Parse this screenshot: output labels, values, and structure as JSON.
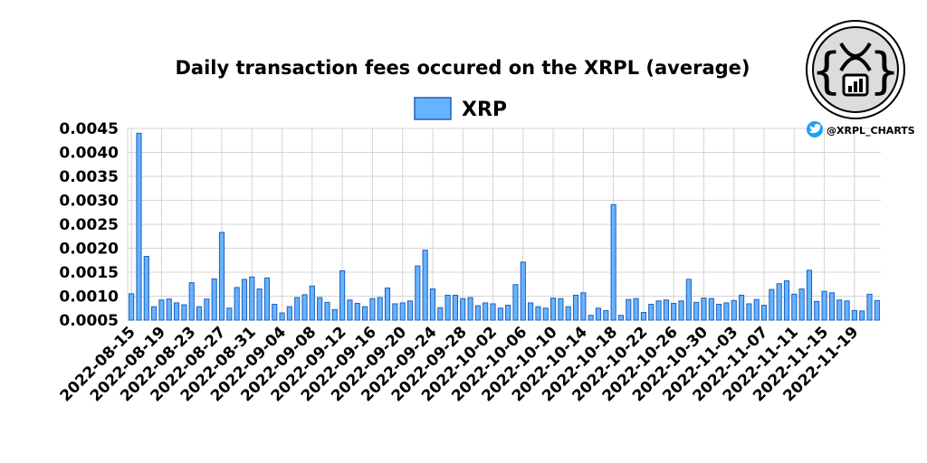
{
  "branding": {
    "handle": "@XRPL_CHARTS",
    "logo_label": "XRPL charts logo"
  },
  "chart_data": {
    "type": "bar",
    "title": "Daily transaction fees occured on the XRPL (average)",
    "xlabel": "",
    "ylabel": "",
    "ylim": [
      0.0005,
      0.0045
    ],
    "yticks": [
      "0.0005",
      "0.0010",
      "0.0015",
      "0.0020",
      "0.0025",
      "0.0030",
      "0.0035",
      "0.0040",
      "0.0045"
    ],
    "xtick_labels": [
      "2022-08-15",
      "2022-08-19",
      "2022-08-23",
      "2022-08-27",
      "2022-08-31",
      "2022-09-04",
      "2022-09-08",
      "2022-09-12",
      "2022-09-16",
      "2022-09-20",
      "2022-09-24",
      "2022-09-28",
      "2022-10-02",
      "2022-10-06",
      "2022-10-10",
      "2022-10-14",
      "2022-10-18",
      "2022-10-22",
      "2022-10-26",
      "2022-10-30",
      "2022-11-03",
      "2022-11-07",
      "2022-11-11",
      "2022-11-15",
      "2022-11-19"
    ],
    "grid": true,
    "legend_position": "top-center",
    "colors": {
      "bar_fill": "#66b3ff",
      "bar_edge": "#1f5fbf"
    },
    "series": [
      {
        "name": "XRP",
        "start_date": "2022-08-15",
        "values": [
          0.00105,
          0.0044,
          0.00183,
          0.00078,
          0.00092,
          0.00094,
          0.00086,
          0.00082,
          0.00128,
          0.00078,
          0.00094,
          0.00136,
          0.00233,
          0.00075,
          0.00118,
          0.00135,
          0.0014,
          0.00115,
          0.00138,
          0.00083,
          0.00065,
          0.00078,
          0.00097,
          0.00103,
          0.00121,
          0.00097,
          0.00087,
          0.00072,
          0.00153,
          0.00092,
          0.00085,
          0.00078,
          0.00095,
          0.00097,
          0.00117,
          0.00084,
          0.00086,
          0.0009,
          0.00163,
          0.00196,
          0.00115,
          0.00076,
          0.00102,
          0.00102,
          0.00095,
          0.00097,
          0.0008,
          0.00086,
          0.00084,
          0.00075,
          0.00081,
          0.00124,
          0.00171,
          0.00086,
          0.00078,
          0.00075,
          0.00096,
          0.00095,
          0.00078,
          0.00102,
          0.00107,
          0.0006,
          0.00075,
          0.0007,
          0.00291,
          0.0006,
          0.00093,
          0.00095,
          0.00066,
          0.00083,
          0.0009,
          0.00092,
          0.00085,
          0.0009,
          0.00135,
          0.00087,
          0.00096,
          0.00095,
          0.00083,
          0.00086,
          0.00091,
          0.00102,
          0.00084,
          0.00093,
          0.00081,
          0.00114,
          0.00126,
          0.00132,
          0.00104,
          0.00115,
          0.00154,
          0.00089,
          0.0011,
          0.00107,
          0.00092,
          0.0009,
          0.0007,
          0.00069,
          0.00104,
          0.00091
        ]
      }
    ]
  }
}
